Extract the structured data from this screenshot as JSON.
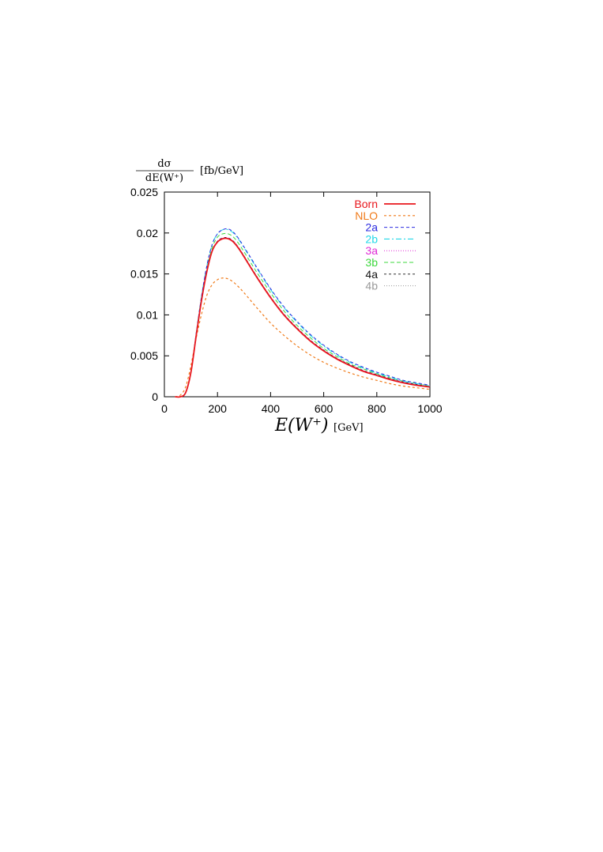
{
  "chart_data": {
    "type": "line",
    "y_label": {
      "numerator": "dσ",
      "denominator": "dE(W⁺)",
      "unit": "[fb/GeV]"
    },
    "x_label": {
      "main": "E(W⁺)",
      "unit": "[GeV]"
    },
    "xlim": [
      0,
      1000
    ],
    "ylim": [
      0,
      0.025
    ],
    "x_ticks": [
      "0",
      "200",
      "400",
      "600",
      "800",
      "1000"
    ],
    "y_ticks": [
      "0",
      "0.005",
      "0.01",
      "0.015",
      "0.02",
      "0.025"
    ],
    "grid": false,
    "legend_position": "top-right",
    "x": [
      40,
      60,
      80,
      100,
      120,
      140,
      160,
      180,
      200,
      220,
      240,
      260,
      280,
      300,
      350,
      400,
      450,
      500,
      550,
      600,
      650,
      700,
      750,
      800,
      850,
      900,
      950,
      1000
    ],
    "series": [
      {
        "name": "Born",
        "color": "#e8161c",
        "dash": "",
        "width": 1.8,
        "values": [
          0,
          0,
          0.0005,
          0.003,
          0.0075,
          0.0118,
          0.0153,
          0.0178,
          0.0189,
          0.0193,
          0.0193,
          0.0189,
          0.0181,
          0.0171,
          0.0145,
          0.0121,
          0.01,
          0.0083,
          0.0068,
          0.0056,
          0.0046,
          0.0038,
          0.0031,
          0.0026,
          0.0021,
          0.0017,
          0.0014,
          0.0012
        ]
      },
      {
        "name": "NLO",
        "color": "#f07a18",
        "dash": "3,3",
        "width": 1.2,
        "values": [
          0,
          0.0002,
          0.0012,
          0.0038,
          0.0072,
          0.0101,
          0.0124,
          0.0137,
          0.0143,
          0.0145,
          0.0144,
          0.014,
          0.0134,
          0.0127,
          0.0108,
          0.009,
          0.0075,
          0.0062,
          0.0051,
          0.0042,
          0.0035,
          0.0029,
          0.0024,
          0.002,
          0.0016,
          0.0013,
          0.0011,
          0.0009
        ]
      },
      {
        "name": "2a",
        "color": "#2c2ce0",
        "dash": "4,3",
        "width": 1.0,
        "values": [
          0,
          0,
          0.0005,
          0.003,
          0.0078,
          0.0123,
          0.016,
          0.0186,
          0.0199,
          0.0204,
          0.0205,
          0.0201,
          0.0193,
          0.0183,
          0.0157,
          0.0132,
          0.011,
          0.0092,
          0.0076,
          0.0063,
          0.0052,
          0.0043,
          0.0036,
          0.003,
          0.0025,
          0.002,
          0.0017,
          0.0014
        ]
      },
      {
        "name": "2b",
        "color": "#22d8e8",
        "dash": "7,3,2,3",
        "width": 1.1,
        "values": [
          0,
          0,
          0.0005,
          0.003,
          0.0078,
          0.0123,
          0.016,
          0.0186,
          0.0199,
          0.0204,
          0.0204,
          0.02,
          0.0192,
          0.0182,
          0.0156,
          0.0131,
          0.0109,
          0.0091,
          0.0075,
          0.0062,
          0.0051,
          0.0042,
          0.0035,
          0.0029,
          0.0024,
          0.0019,
          0.0016,
          0.0013
        ]
      },
      {
        "name": "3a",
        "color": "#e02ad6",
        "dash": "1,2",
        "width": 1.0,
        "values": [
          0,
          0,
          0.0005,
          0.003,
          0.0075,
          0.0118,
          0.0153,
          0.0178,
          0.019,
          0.0194,
          0.0194,
          0.019,
          0.0182,
          0.0172,
          0.0146,
          0.0122,
          0.0101,
          0.0084,
          0.0069,
          0.0057,
          0.0047,
          0.0039,
          0.0032,
          0.0027,
          0.0022,
          0.0018,
          0.0015,
          0.0012
        ]
      },
      {
        "name": "3b",
        "color": "#3ed83e",
        "dash": "5,3",
        "width": 1.0,
        "values": [
          0,
          0,
          0.0005,
          0.003,
          0.0076,
          0.012,
          0.0156,
          0.0182,
          0.0195,
          0.0199,
          0.0199,
          0.0195,
          0.0187,
          0.0177,
          0.0151,
          0.0127,
          0.0105,
          0.0087,
          0.0072,
          0.0059,
          0.0049,
          0.004,
          0.0034,
          0.0028,
          0.0023,
          0.0019,
          0.0016,
          0.0013
        ]
      },
      {
        "name": "4a",
        "color": "#111111",
        "dash": "3,3",
        "width": 0.9,
        "values": [
          0,
          0,
          0.0005,
          0.003,
          0.0075,
          0.0118,
          0.0153,
          0.0178,
          0.019,
          0.0194,
          0.0194,
          0.019,
          0.0182,
          0.0172,
          0.0146,
          0.0122,
          0.0101,
          0.0084,
          0.0069,
          0.0057,
          0.0047,
          0.0039,
          0.0032,
          0.0027,
          0.0022,
          0.0018,
          0.0015,
          0.0012
        ]
      },
      {
        "name": "4b",
        "color": "#9a9a9a",
        "dash": "1,2",
        "width": 1.0,
        "values": [
          0,
          0,
          0.0005,
          0.003,
          0.0075,
          0.0118,
          0.0153,
          0.0178,
          0.0189,
          0.0193,
          0.0193,
          0.0189,
          0.0181,
          0.0171,
          0.0145,
          0.0121,
          0.01,
          0.0083,
          0.0068,
          0.0056,
          0.0046,
          0.0038,
          0.0031,
          0.0026,
          0.0021,
          0.0017,
          0.0014,
          0.0012
        ]
      }
    ]
  }
}
